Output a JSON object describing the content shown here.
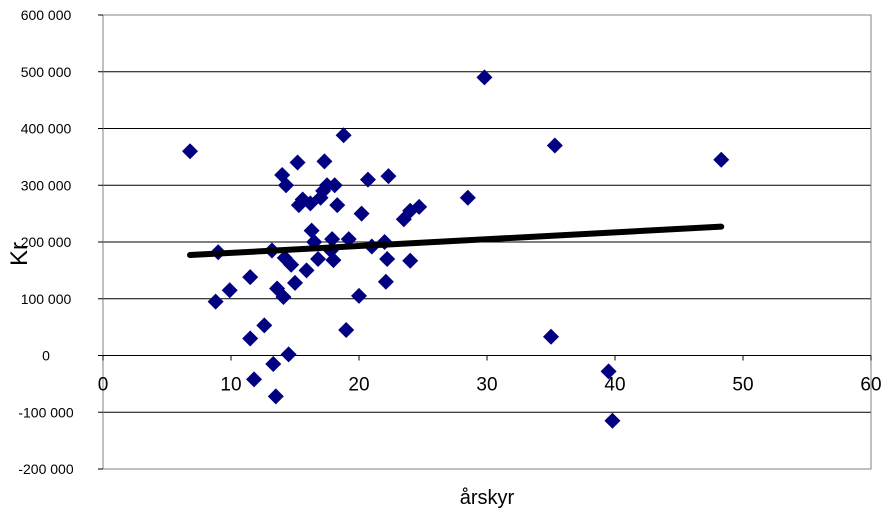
{
  "chart_data": {
    "type": "scatter",
    "title": "",
    "xlabel": "årskyr",
    "ylabel": "Kr",
    "xlim": [
      0,
      60
    ],
    "ylim": [
      -200000,
      600000
    ],
    "x_ticks": [
      "0",
      "10",
      "20",
      "30",
      "40",
      "50",
      "60"
    ],
    "y_ticks": [
      "600 000",
      "500 000",
      "400 000",
      "300 000",
      "200 000",
      "100 000",
      "0",
      "-100 000",
      "-200 000"
    ],
    "grid": "horizontal",
    "legend": "none",
    "marker": "diamond",
    "colors": {
      "marker": "#000080",
      "trendline": "#000000",
      "grid": "#000000",
      "frame": "#808080"
    },
    "series": [
      {
        "points": [
          [
            6.8,
            360000
          ],
          [
            9.0,
            182000
          ],
          [
            8.8,
            95000
          ],
          [
            9.9,
            115000
          ],
          [
            11.5,
            138000
          ],
          [
            11.5,
            30000
          ],
          [
            11.8,
            -42000
          ],
          [
            12.6,
            53000
          ],
          [
            13.2,
            185000
          ],
          [
            13.3,
            -15000
          ],
          [
            13.5,
            -72000
          ],
          [
            13.6,
            118000
          ],
          [
            14.0,
            318000
          ],
          [
            14.1,
            103000
          ],
          [
            14.3,
            300000
          ],
          [
            14.2,
            172000
          ],
          [
            14.5,
            2000
          ],
          [
            14.7,
            160000
          ],
          [
            15.0,
            128000
          ],
          [
            15.2,
            340000
          ],
          [
            15.3,
            265000
          ],
          [
            15.6,
            275000
          ],
          [
            15.9,
            150000
          ],
          [
            16.2,
            268000
          ],
          [
            16.3,
            220000
          ],
          [
            16.5,
            200000
          ],
          [
            16.8,
            170000
          ],
          [
            17.0,
            278000
          ],
          [
            17.2,
            290000
          ],
          [
            17.3,
            342000
          ],
          [
            17.5,
            300000
          ],
          [
            17.8,
            185000
          ],
          [
            17.9,
            205000
          ],
          [
            18.0,
            168000
          ],
          [
            18.1,
            300000
          ],
          [
            18.3,
            265000
          ],
          [
            18.8,
            388000
          ],
          [
            19.0,
            45000
          ],
          [
            19.2,
            205000
          ],
          [
            20.0,
            105000
          ],
          [
            20.2,
            250000
          ],
          [
            20.7,
            310000
          ],
          [
            21.0,
            192000
          ],
          [
            22.0,
            200000
          ],
          [
            22.1,
            130000
          ],
          [
            22.2,
            170000
          ],
          [
            22.3,
            316000
          ],
          [
            23.5,
            240000
          ],
          [
            24.0,
            255000
          ],
          [
            24.0,
            167000
          ],
          [
            24.7,
            262000
          ],
          [
            28.5,
            278000
          ],
          [
            29.8,
            490000
          ],
          [
            35.0,
            33000
          ],
          [
            35.3,
            370000
          ],
          [
            39.5,
            -28000
          ],
          [
            39.8,
            -115000
          ],
          [
            48.3,
            345000
          ]
        ]
      }
    ],
    "trendline": {
      "x": [
        6.8,
        48.3
      ],
      "y": [
        177000,
        227000
      ]
    }
  }
}
